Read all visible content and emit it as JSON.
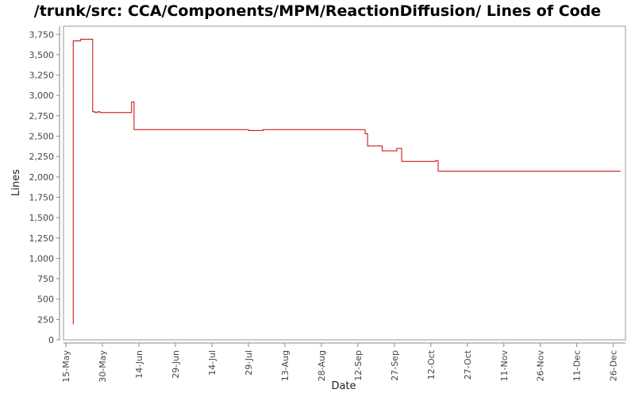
{
  "chart_data": {
    "type": "line",
    "title": "/trunk/src: CCA/Components/MPM/ReactionDiffusion/ Lines of Code",
    "xlabel": "Date",
    "ylabel": "Lines",
    "ylim": [
      0,
      3850
    ],
    "xlim": [
      "2006-05-14",
      "2006-12-31"
    ],
    "y_ticks": [
      {
        "value": 0,
        "label": "0"
      },
      {
        "value": 250,
        "label": "250"
      },
      {
        "value": 500,
        "label": "500"
      },
      {
        "value": 750,
        "label": "750"
      },
      {
        "value": 1000,
        "label": "1,000"
      },
      {
        "value": 1250,
        "label": "1,250"
      },
      {
        "value": 1500,
        "label": "1,500"
      },
      {
        "value": 1750,
        "label": "1,750"
      },
      {
        "value": 2000,
        "label": "2,000"
      },
      {
        "value": 2250,
        "label": "2,250"
      },
      {
        "value": 2500,
        "label": "2,500"
      },
      {
        "value": 2750,
        "label": "2,750"
      },
      {
        "value": 3000,
        "label": "3,000"
      },
      {
        "value": 3250,
        "label": "3,250"
      },
      {
        "value": 3500,
        "label": "3,500"
      },
      {
        "value": 3750,
        "label": "3,750"
      }
    ],
    "x_ticks": [
      {
        "date": "2006-05-15",
        "label": "15-May"
      },
      {
        "date": "2006-05-30",
        "label": "30-May"
      },
      {
        "date": "2006-06-14",
        "label": "14-Jun"
      },
      {
        "date": "2006-06-29",
        "label": "29-Jun"
      },
      {
        "date": "2006-07-14",
        "label": "14-Jul"
      },
      {
        "date": "2006-07-29",
        "label": "29-Jul"
      },
      {
        "date": "2006-08-13",
        "label": "13-Aug"
      },
      {
        "date": "2006-08-28",
        "label": "28-Aug"
      },
      {
        "date": "2006-09-12",
        "label": "12-Sep"
      },
      {
        "date": "2006-09-27",
        "label": "27-Sep"
      },
      {
        "date": "2006-10-12",
        "label": "12-Oct"
      },
      {
        "date": "2006-10-27",
        "label": "27-Oct"
      },
      {
        "date": "2006-11-11",
        "label": "11-Nov"
      },
      {
        "date": "2006-11-26",
        "label": "26-Nov"
      },
      {
        "date": "2006-12-11",
        "label": "11-Dec"
      },
      {
        "date": "2006-12-26",
        "label": "26-Dec"
      }
    ],
    "grid": false,
    "series": [
      {
        "color": "#cc0000",
        "step": true,
        "points": [
          {
            "x": "2006-05-18",
            "y": 190
          },
          {
            "x": "2006-05-18",
            "y": 3670
          },
          {
            "x": "2006-05-21",
            "y": 3690
          },
          {
            "x": "2006-05-26",
            "y": 2800
          },
          {
            "x": "2006-05-27",
            "y": 2790
          },
          {
            "x": "2006-05-28",
            "y": 2800
          },
          {
            "x": "2006-05-29",
            "y": 2790
          },
          {
            "x": "2006-06-11",
            "y": 2920
          },
          {
            "x": "2006-06-12",
            "y": 2580
          },
          {
            "x": "2006-07-29",
            "y": 2570
          },
          {
            "x": "2006-08-04",
            "y": 2580
          },
          {
            "x": "2006-09-15",
            "y": 2530
          },
          {
            "x": "2006-09-16",
            "y": 2380
          },
          {
            "x": "2006-09-22",
            "y": 2320
          },
          {
            "x": "2006-09-28",
            "y": 2350
          },
          {
            "x": "2006-09-30",
            "y": 2190
          },
          {
            "x": "2006-10-14",
            "y": 2200
          },
          {
            "x": "2006-10-15",
            "y": 2070
          },
          {
            "x": "2006-12-29",
            "y": 2070
          }
        ]
      }
    ]
  }
}
